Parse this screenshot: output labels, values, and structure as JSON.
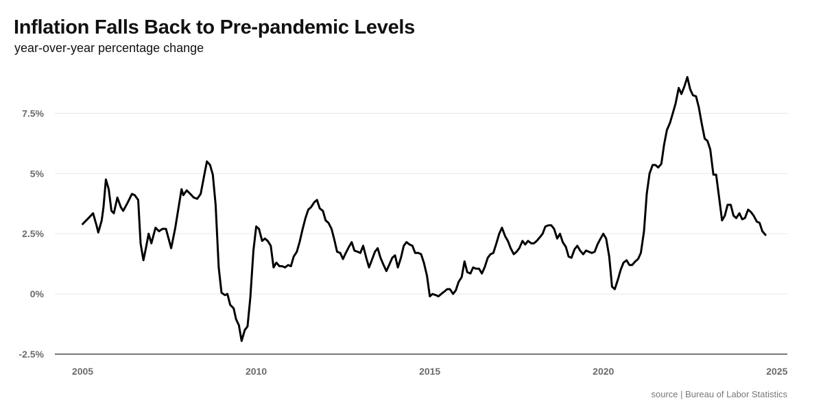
{
  "title": "Inflation Falls Back to Pre-pandemic Levels",
  "subtitle": "year-over-year percentage change",
  "source": "source | Bureau of Labor Statistics",
  "colors": {
    "line": "#000000",
    "grid": "#e6e6e6",
    "axis": "#777777",
    "tick_text": "#6b6b6b"
  },
  "chart_data": {
    "type": "line",
    "title": "Inflation Falls Back to Pre-pandemic Levels",
    "subtitle": "year-over-year percentage change",
    "xlabel": "",
    "ylabel": "",
    "xlim": [
      2004.2,
      2025.3
    ],
    "ylim": [
      -2.5,
      9.5
    ],
    "grid": true,
    "legend": "none",
    "y_ticks": [
      -2.5,
      0,
      2.5,
      5,
      7.5
    ],
    "y_tick_labels": [
      "-2.5%",
      "0%",
      "2.5%",
      "5%",
      "7.5%"
    ],
    "x_ticks": [
      2005,
      2010,
      2015,
      2020,
      2025
    ],
    "x_tick_labels": [
      "2005",
      "2010",
      "2015",
      "2020",
      "2025"
    ],
    "series": [
      {
        "points": [
          [
            2005.0,
            2.9
          ],
          [
            2005.17,
            3.15
          ],
          [
            2005.3,
            3.35
          ],
          [
            2005.4,
            2.85
          ],
          [
            2005.45,
            2.55
          ],
          [
            2005.55,
            3.05
          ],
          [
            2005.6,
            3.6
          ],
          [
            2005.67,
            4.75
          ],
          [
            2005.75,
            4.35
          ],
          [
            2005.83,
            3.45
          ],
          [
            2005.9,
            3.35
          ],
          [
            2006.0,
            4.0
          ],
          [
            2006.1,
            3.6
          ],
          [
            2006.17,
            3.45
          ],
          [
            2006.3,
            3.8
          ],
          [
            2006.42,
            4.15
          ],
          [
            2006.5,
            4.1
          ],
          [
            2006.6,
            3.9
          ],
          [
            2006.67,
            2.1
          ],
          [
            2006.75,
            1.4
          ],
          [
            2006.83,
            1.95
          ],
          [
            2006.9,
            2.5
          ],
          [
            2006.98,
            2.1
          ],
          [
            2007.1,
            2.75
          ],
          [
            2007.2,
            2.6
          ],
          [
            2007.3,
            2.7
          ],
          [
            2007.4,
            2.7
          ],
          [
            2007.55,
            1.9
          ],
          [
            2007.67,
            2.75
          ],
          [
            2007.85,
            4.35
          ],
          [
            2007.9,
            4.1
          ],
          [
            2008.0,
            4.3
          ],
          [
            2008.1,
            4.15
          ],
          [
            2008.2,
            4.0
          ],
          [
            2008.3,
            3.95
          ],
          [
            2008.4,
            4.15
          ],
          [
            2008.5,
            4.9
          ],
          [
            2008.58,
            5.5
          ],
          [
            2008.67,
            5.35
          ],
          [
            2008.75,
            4.95
          ],
          [
            2008.83,
            3.7
          ],
          [
            2008.92,
            1.1
          ],
          [
            2009.0,
            0.05
          ],
          [
            2009.1,
            -0.05
          ],
          [
            2009.17,
            0.0
          ],
          [
            2009.25,
            -0.45
          ],
          [
            2009.35,
            -0.6
          ],
          [
            2009.42,
            -1.05
          ],
          [
            2009.5,
            -1.3
          ],
          [
            2009.58,
            -1.95
          ],
          [
            2009.67,
            -1.5
          ],
          [
            2009.75,
            -1.35
          ],
          [
            2009.83,
            -0.15
          ],
          [
            2009.92,
            1.8
          ],
          [
            2010.0,
            2.8
          ],
          [
            2010.08,
            2.7
          ],
          [
            2010.17,
            2.2
          ],
          [
            2010.25,
            2.3
          ],
          [
            2010.33,
            2.2
          ],
          [
            2010.42,
            2.0
          ],
          [
            2010.5,
            1.1
          ],
          [
            2010.58,
            1.3
          ],
          [
            2010.67,
            1.15
          ],
          [
            2010.75,
            1.15
          ],
          [
            2010.83,
            1.1
          ],
          [
            2010.92,
            1.2
          ],
          [
            2011.0,
            1.15
          ],
          [
            2011.08,
            1.55
          ],
          [
            2011.17,
            1.75
          ],
          [
            2011.25,
            2.15
          ],
          [
            2011.33,
            2.65
          ],
          [
            2011.42,
            3.15
          ],
          [
            2011.5,
            3.5
          ],
          [
            2011.58,
            3.6
          ],
          [
            2011.67,
            3.8
          ],
          [
            2011.75,
            3.9
          ],
          [
            2011.83,
            3.55
          ],
          [
            2011.92,
            3.45
          ],
          [
            2012.0,
            3.05
          ],
          [
            2012.08,
            2.95
          ],
          [
            2012.17,
            2.7
          ],
          [
            2012.25,
            2.25
          ],
          [
            2012.33,
            1.75
          ],
          [
            2012.42,
            1.7
          ],
          [
            2012.5,
            1.45
          ],
          [
            2012.58,
            1.7
          ],
          [
            2012.67,
            1.95
          ],
          [
            2012.75,
            2.15
          ],
          [
            2012.83,
            1.8
          ],
          [
            2012.92,
            1.75
          ],
          [
            2013.0,
            1.7
          ],
          [
            2013.08,
            2.0
          ],
          [
            2013.17,
            1.5
          ],
          [
            2013.25,
            1.1
          ],
          [
            2013.33,
            1.4
          ],
          [
            2013.42,
            1.75
          ],
          [
            2013.5,
            1.9
          ],
          [
            2013.58,
            1.5
          ],
          [
            2013.67,
            1.2
          ],
          [
            2013.75,
            0.95
          ],
          [
            2013.83,
            1.2
          ],
          [
            2013.92,
            1.5
          ],
          [
            2014.0,
            1.6
          ],
          [
            2014.08,
            1.1
          ],
          [
            2014.17,
            1.5
          ],
          [
            2014.25,
            2.0
          ],
          [
            2014.33,
            2.15
          ],
          [
            2014.42,
            2.05
          ],
          [
            2014.5,
            2.0
          ],
          [
            2014.58,
            1.7
          ],
          [
            2014.67,
            1.7
          ],
          [
            2014.75,
            1.65
          ],
          [
            2014.83,
            1.3
          ],
          [
            2014.92,
            0.75
          ],
          [
            2015.0,
            -0.1
          ],
          [
            2015.08,
            0.0
          ],
          [
            2015.17,
            -0.05
          ],
          [
            2015.25,
            -0.1
          ],
          [
            2015.33,
            0.0
          ],
          [
            2015.42,
            0.1
          ],
          [
            2015.5,
            0.2
          ],
          [
            2015.58,
            0.2
          ],
          [
            2015.67,
            0.0
          ],
          [
            2015.75,
            0.15
          ],
          [
            2015.83,
            0.5
          ],
          [
            2015.92,
            0.7
          ],
          [
            2016.0,
            1.35
          ],
          [
            2016.08,
            0.9
          ],
          [
            2016.17,
            0.85
          ],
          [
            2016.25,
            1.1
          ],
          [
            2016.33,
            1.05
          ],
          [
            2016.42,
            1.05
          ],
          [
            2016.5,
            0.85
          ],
          [
            2016.58,
            1.1
          ],
          [
            2016.67,
            1.5
          ],
          [
            2016.75,
            1.65
          ],
          [
            2016.83,
            1.7
          ],
          [
            2016.92,
            2.1
          ],
          [
            2017.0,
            2.5
          ],
          [
            2017.08,
            2.75
          ],
          [
            2017.17,
            2.4
          ],
          [
            2017.25,
            2.2
          ],
          [
            2017.33,
            1.9
          ],
          [
            2017.42,
            1.65
          ],
          [
            2017.5,
            1.75
          ],
          [
            2017.58,
            1.9
          ],
          [
            2017.67,
            2.2
          ],
          [
            2017.75,
            2.05
          ],
          [
            2017.83,
            2.2
          ],
          [
            2017.92,
            2.1
          ],
          [
            2018.0,
            2.1
          ],
          [
            2018.08,
            2.2
          ],
          [
            2018.17,
            2.35
          ],
          [
            2018.25,
            2.5
          ],
          [
            2018.33,
            2.8
          ],
          [
            2018.42,
            2.85
          ],
          [
            2018.5,
            2.85
          ],
          [
            2018.58,
            2.7
          ],
          [
            2018.67,
            2.3
          ],
          [
            2018.75,
            2.5
          ],
          [
            2018.83,
            2.15
          ],
          [
            2018.92,
            1.95
          ],
          [
            2019.0,
            1.55
          ],
          [
            2019.08,
            1.5
          ],
          [
            2019.17,
            1.85
          ],
          [
            2019.25,
            2.0
          ],
          [
            2019.33,
            1.8
          ],
          [
            2019.42,
            1.65
          ],
          [
            2019.5,
            1.8
          ],
          [
            2019.58,
            1.75
          ],
          [
            2019.67,
            1.7
          ],
          [
            2019.75,
            1.75
          ],
          [
            2019.83,
            2.05
          ],
          [
            2019.92,
            2.3
          ],
          [
            2020.0,
            2.5
          ],
          [
            2020.08,
            2.3
          ],
          [
            2020.17,
            1.55
          ],
          [
            2020.25,
            0.3
          ],
          [
            2020.33,
            0.2
          ],
          [
            2020.42,
            0.6
          ],
          [
            2020.5,
            1.0
          ],
          [
            2020.58,
            1.3
          ],
          [
            2020.67,
            1.4
          ],
          [
            2020.75,
            1.2
          ],
          [
            2020.83,
            1.2
          ],
          [
            2020.92,
            1.35
          ],
          [
            2021.0,
            1.45
          ],
          [
            2021.08,
            1.7
          ],
          [
            2021.17,
            2.6
          ],
          [
            2021.25,
            4.15
          ],
          [
            2021.33,
            5.0
          ],
          [
            2021.42,
            5.35
          ],
          [
            2021.5,
            5.35
          ],
          [
            2021.58,
            5.25
          ],
          [
            2021.67,
            5.4
          ],
          [
            2021.75,
            6.2
          ],
          [
            2021.83,
            6.8
          ],
          [
            2021.92,
            7.1
          ],
          [
            2022.0,
            7.5
          ],
          [
            2022.08,
            7.9
          ],
          [
            2022.17,
            8.55
          ],
          [
            2022.25,
            8.3
          ],
          [
            2022.33,
            8.6
          ],
          [
            2022.42,
            9.0
          ],
          [
            2022.5,
            8.5
          ],
          [
            2022.58,
            8.25
          ],
          [
            2022.67,
            8.2
          ],
          [
            2022.75,
            7.75
          ],
          [
            2022.83,
            7.1
          ],
          [
            2022.92,
            6.45
          ],
          [
            2023.0,
            6.35
          ],
          [
            2023.08,
            6.0
          ],
          [
            2023.17,
            4.95
          ],
          [
            2023.25,
            4.95
          ],
          [
            2023.33,
            4.05
          ],
          [
            2023.42,
            3.05
          ],
          [
            2023.5,
            3.25
          ],
          [
            2023.58,
            3.7
          ],
          [
            2023.67,
            3.7
          ],
          [
            2023.75,
            3.25
          ],
          [
            2023.83,
            3.15
          ],
          [
            2023.92,
            3.35
          ],
          [
            2024.0,
            3.1
          ],
          [
            2024.08,
            3.15
          ],
          [
            2024.17,
            3.5
          ],
          [
            2024.25,
            3.4
          ],
          [
            2024.33,
            3.25
          ],
          [
            2024.42,
            3.0
          ],
          [
            2024.5,
            2.95
          ],
          [
            2024.58,
            2.6
          ],
          [
            2024.67,
            2.45
          ]
        ]
      }
    ]
  }
}
